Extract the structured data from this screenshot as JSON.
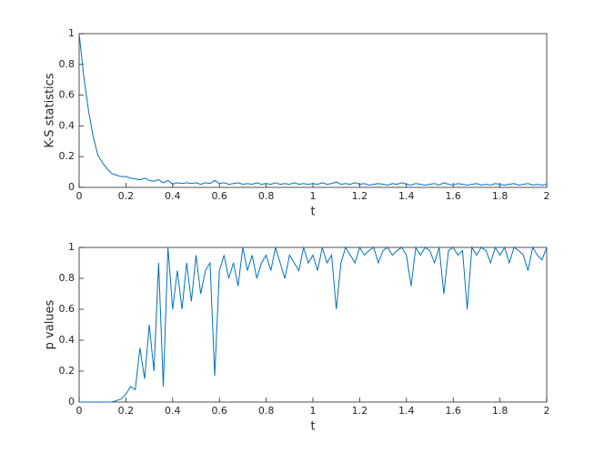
{
  "chart_data": [
    {
      "type": "line",
      "xlabel": "t",
      "ylabel": "K-S statistics",
      "color": "#0072BD",
      "xlim": [
        0,
        2
      ],
      "xticks": [
        0,
        0.2,
        0.4,
        0.6,
        0.8,
        1,
        1.2,
        1.4,
        1.6,
        1.8,
        2
      ],
      "ylim": [
        0,
        1
      ],
      "yticks": [
        0,
        0.2,
        0.4,
        0.6,
        0.8,
        1
      ],
      "x": [
        0,
        0.02,
        0.04,
        0.06,
        0.08,
        0.1,
        0.12,
        0.14,
        0.16,
        0.18,
        0.2,
        0.22,
        0.24,
        0.26,
        0.28,
        0.3,
        0.32,
        0.34,
        0.36,
        0.38,
        0.4,
        0.42,
        0.44,
        0.46,
        0.48,
        0.5,
        0.52,
        0.54,
        0.56,
        0.58,
        0.6,
        0.62,
        0.64,
        0.66,
        0.68,
        0.7,
        0.72,
        0.74,
        0.76,
        0.78,
        0.8,
        0.82,
        0.84,
        0.86,
        0.88,
        0.9,
        0.92,
        0.94,
        0.96,
        0.98,
        1,
        1.02,
        1.04,
        1.06,
        1.08,
        1.1,
        1.12,
        1.14,
        1.16,
        1.18,
        1.2,
        1.22,
        1.24,
        1.26,
        1.28,
        1.3,
        1.32,
        1.34,
        1.36,
        1.38,
        1.4,
        1.42,
        1.44,
        1.46,
        1.48,
        1.5,
        1.52,
        1.54,
        1.56,
        1.58,
        1.6,
        1.62,
        1.64,
        1.66,
        1.68,
        1.7,
        1.72,
        1.74,
        1.76,
        1.78,
        1.8,
        1.82,
        1.84,
        1.86,
        1.88,
        1.9,
        1.92,
        1.94,
        1.96,
        1.98,
        2
      ],
      "values": [
        1,
        0.72,
        0.5,
        0.33,
        0.21,
        0.16,
        0.12,
        0.09,
        0.08,
        0.07,
        0.07,
        0.06,
        0.055,
        0.05,
        0.06,
        0.045,
        0.04,
        0.05,
        0.03,
        0.045,
        0.02,
        0.03,
        0.025,
        0.03,
        0.025,
        0.03,
        0.02,
        0.03,
        0.025,
        0.045,
        0.025,
        0.03,
        0.02,
        0.025,
        0.03,
        0.02,
        0.025,
        0.02,
        0.03,
        0.02,
        0.025,
        0.02,
        0.03,
        0.02,
        0.025,
        0.02,
        0.03,
        0.02,
        0.025,
        0.02,
        0.025,
        0.02,
        0.03,
        0.02,
        0.025,
        0.035,
        0.02,
        0.025,
        0.02,
        0.03,
        0.02,
        0.025,
        0.015,
        0.02,
        0.025,
        0.02,
        0.015,
        0.025,
        0.02,
        0.03,
        0.02,
        0.015,
        0.025,
        0.02,
        0.015,
        0.02,
        0.025,
        0.015,
        0.03,
        0.02,
        0.015,
        0.025,
        0.02,
        0.015,
        0.02,
        0.025,
        0.015,
        0.02,
        0.015,
        0.025,
        0.02,
        0.015,
        0.02,
        0.025,
        0.015,
        0.02,
        0.025,
        0.015,
        0.02,
        0.015,
        0.02
      ]
    },
    {
      "type": "line",
      "xlabel": "t",
      "ylabel": "p values",
      "color": "#0072BD",
      "xlim": [
        0,
        2
      ],
      "xticks": [
        0,
        0.2,
        0.4,
        0.6,
        0.8,
        1,
        1.2,
        1.4,
        1.6,
        1.8,
        2
      ],
      "ylim": [
        0,
        1
      ],
      "yticks": [
        0,
        0.2,
        0.4,
        0.6,
        0.8,
        1
      ],
      "x": [
        0,
        0.02,
        0.04,
        0.06,
        0.08,
        0.1,
        0.12,
        0.14,
        0.16,
        0.18,
        0.2,
        0.22,
        0.24,
        0.26,
        0.28,
        0.3,
        0.32,
        0.34,
        0.36,
        0.38,
        0.4,
        0.42,
        0.44,
        0.46,
        0.48,
        0.5,
        0.52,
        0.54,
        0.56,
        0.58,
        0.6,
        0.62,
        0.64,
        0.66,
        0.68,
        0.7,
        0.72,
        0.74,
        0.76,
        0.78,
        0.8,
        0.82,
        0.84,
        0.86,
        0.88,
        0.9,
        0.92,
        0.94,
        0.96,
        0.98,
        1,
        1.02,
        1.04,
        1.06,
        1.08,
        1.1,
        1.12,
        1.14,
        1.16,
        1.18,
        1.2,
        1.22,
        1.24,
        1.26,
        1.28,
        1.3,
        1.32,
        1.34,
        1.36,
        1.38,
        1.4,
        1.42,
        1.44,
        1.46,
        1.48,
        1.5,
        1.52,
        1.54,
        1.56,
        1.58,
        1.6,
        1.62,
        1.64,
        1.66,
        1.68,
        1.7,
        1.72,
        1.74,
        1.76,
        1.78,
        1.8,
        1.82,
        1.84,
        1.86,
        1.88,
        1.9,
        1.92,
        1.94,
        1.96,
        1.98,
        2
      ],
      "values": [
        0,
        0,
        0,
        0,
        0,
        0,
        0,
        0,
        0.01,
        0.02,
        0.05,
        0.1,
        0.08,
        0.35,
        0.15,
        0.5,
        0.2,
        0.9,
        0.1,
        1,
        0.6,
        0.85,
        0.6,
        0.9,
        0.65,
        0.95,
        0.7,
        0.85,
        0.9,
        0.17,
        0.85,
        0.95,
        0.8,
        0.9,
        0.75,
        1,
        0.85,
        0.95,
        0.8,
        0.9,
        0.95,
        0.85,
        1,
        0.9,
        0.8,
        0.95,
        0.9,
        0.85,
        1,
        0.9,
        0.95,
        0.85,
        1,
        0.9,
        0.95,
        0.6,
        0.9,
        1,
        0.95,
        0.9,
        1,
        0.95,
        0.98,
        1,
        0.9,
        0.98,
        1,
        0.95,
        0.98,
        1,
        0.95,
        0.75,
        1,
        0.95,
        1,
        0.98,
        0.9,
        1,
        0.7,
        0.98,
        1,
        0.95,
        0.98,
        0.6,
        1,
        0.95,
        1,
        0.98,
        0.9,
        1,
        0.95,
        1,
        0.9,
        1,
        0.98,
        0.95,
        0.85,
        1,
        0.95,
        0.92,
        1
      ]
    }
  ]
}
